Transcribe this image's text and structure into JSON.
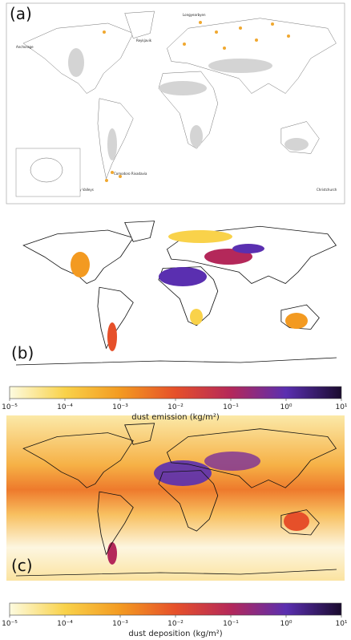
{
  "panels": [
    {
      "label": "(a)",
      "places": [
        "Longyearbyen",
        "Anchorage",
        "Reykjavik",
        "Comodoro Rivadavia",
        "McMurdo Dry Valleys",
        "Christchurch"
      ]
    },
    {
      "label": "(b)"
    },
    {
      "label": "(c)"
    }
  ],
  "colorbars": [
    {
      "label": "dust emission (kg/m²)",
      "log": true,
      "lim": [
        1e-05,
        10
      ],
      "ticks": [
        {
          "value": 1e-05,
          "label": "10⁻⁵"
        },
        {
          "value": 0.0001,
          "label": "10⁻⁴"
        },
        {
          "value": 0.001,
          "label": "10⁻³"
        },
        {
          "value": 0.01,
          "label": "10⁻²"
        },
        {
          "value": 0.1,
          "label": "10⁻¹"
        },
        {
          "value": 1,
          "label": "10⁰"
        },
        {
          "value": 10,
          "label": "10¹"
        }
      ],
      "colors": [
        "#fdfbe0",
        "#f9d24a",
        "#f39a21",
        "#e6502a",
        "#b4285a",
        "#5a2fb0",
        "#1a0b2e"
      ]
    },
    {
      "label": "dust deposition (kg/m²)",
      "log": true,
      "lim": [
        1e-05,
        10
      ],
      "ticks": [
        {
          "value": 1e-05,
          "label": "10⁻⁵"
        },
        {
          "value": 0.0001,
          "label": "10⁻⁴"
        },
        {
          "value": 0.001,
          "label": "10⁻³"
        },
        {
          "value": 0.01,
          "label": "10⁻²"
        },
        {
          "value": 0.1,
          "label": "10⁻¹"
        },
        {
          "value": 1,
          "label": "10⁰"
        },
        {
          "value": 10,
          "label": "10¹"
        }
      ],
      "colors": [
        "#fdfbe0",
        "#f9d24a",
        "#f39a21",
        "#e6502a",
        "#b4285a",
        "#5a2fb0",
        "#1a0b2e"
      ]
    }
  ]
}
